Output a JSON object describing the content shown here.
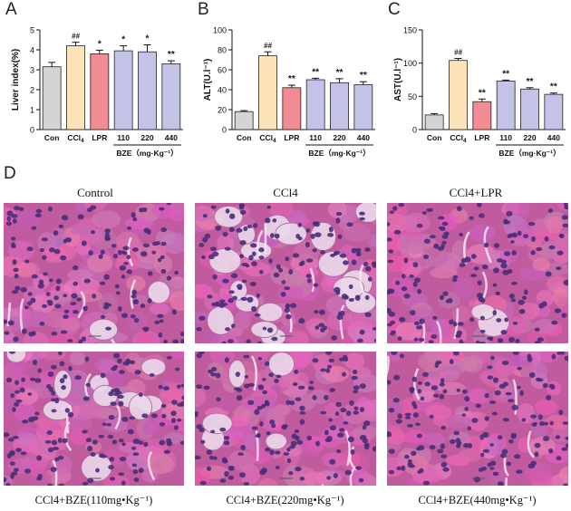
{
  "panels": {
    "a": "A",
    "b": "B",
    "c": "C",
    "d": "D"
  },
  "chart_data": [
    {
      "type": "bar",
      "panel": "A",
      "ylabel": "Liver index(%)",
      "ylim": [
        0,
        5
      ],
      "yticks": [
        "0",
        "1",
        "2",
        "3",
        "4",
        "5"
      ],
      "categories": [
        "Con",
        "CCl4",
        "LPR",
        "110",
        "220",
        "440"
      ],
      "values": [
        3.15,
        4.2,
        3.8,
        3.95,
        3.9,
        3.3
      ],
      "errors": [
        0.22,
        0.18,
        0.18,
        0.25,
        0.35,
        0.15
      ],
      "sig": [
        "",
        "##",
        "*",
        "*",
        "*",
        "**"
      ],
      "colors": [
        "#d4d4d4",
        "#fde3b8",
        "#f28c94",
        "#c3c3e8",
        "#c3c3e8",
        "#c3c3e8"
      ],
      "group_label": "BZE（mg·Kg⁻¹）"
    },
    {
      "type": "bar",
      "panel": "B",
      "ylabel": "ALT(U.l⁻¹)",
      "ylim": [
        0,
        100
      ],
      "yticks": [
        "0",
        "20",
        "40",
        "60",
        "80",
        "100"
      ],
      "categories": [
        "Con",
        "CCl4",
        "LPR",
        "110",
        "220",
        "440"
      ],
      "values": [
        18,
        74,
        42,
        50,
        47,
        45
      ],
      "errors": [
        1,
        4,
        2.5,
        1.5,
        4,
        3
      ],
      "sig": [
        "",
        "##",
        "**",
        "**",
        "**",
        "**"
      ],
      "colors": [
        "#d4d4d4",
        "#fde3b8",
        "#f28c94",
        "#c3c3e8",
        "#c3c3e8",
        "#c3c3e8"
      ],
      "group_label": "BZE（mg·Kg⁻¹）"
    },
    {
      "type": "bar",
      "panel": "C",
      "ylabel": "AST(U.l⁻¹)",
      "ylim": [
        0,
        150
      ],
      "yticks": [
        "0",
        "50",
        "100",
        "150"
      ],
      "categories": [
        "Con",
        "CCl4",
        "LPR",
        "110",
        "220",
        "440"
      ],
      "values": [
        22,
        104,
        42,
        73,
        61,
        53
      ],
      "errors": [
        2,
        3,
        4,
        1.5,
        2,
        2
      ],
      "sig": [
        "",
        "##",
        "**",
        "**",
        "**",
        "**"
      ],
      "colors": [
        "#d4d4d4",
        "#fde3b8",
        "#f28c94",
        "#c3c3e8",
        "#c3c3e8",
        "#c3c3e8"
      ],
      "group_label": "BZE（mg·Kg⁻¹）"
    }
  ],
  "histology": {
    "titles": [
      "Control",
      "CCl4",
      "CCl4+LPR"
    ],
    "captions": [
      "CCl4+BZE(110mg•Kg⁻¹)",
      "CCl4+BZE(220mg•Kg⁻¹)",
      "CCl4+BZE(440mg•Kg⁻¹)"
    ],
    "tissue_color": "#c05c9e",
    "nucleus_color": "#4a2c78"
  }
}
